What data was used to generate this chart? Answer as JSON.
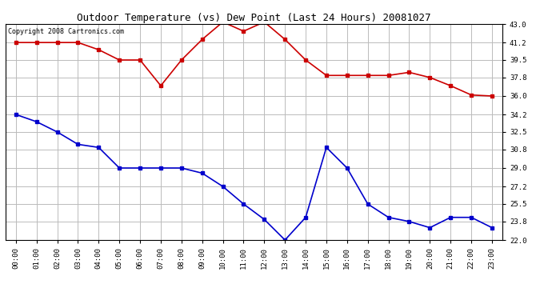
{
  "title": "Outdoor Temperature (vs) Dew Point (Last 24 Hours) 20081027",
  "copyright_text": "Copyright 2008 Cartronics.com",
  "x_labels": [
    "00:00",
    "01:00",
    "02:00",
    "03:00",
    "04:00",
    "05:00",
    "06:00",
    "07:00",
    "08:00",
    "09:00",
    "10:00",
    "11:00",
    "12:00",
    "13:00",
    "14:00",
    "15:00",
    "16:00",
    "17:00",
    "18:00",
    "19:00",
    "20:00",
    "21:00",
    "22:00",
    "23:00"
  ],
  "temp_data": [
    41.2,
    41.2,
    41.2,
    41.2,
    40.5,
    39.5,
    39.5,
    37.0,
    39.5,
    41.5,
    43.2,
    42.3,
    43.2,
    41.5,
    39.5,
    38.0,
    38.0,
    38.0,
    38.0,
    38.3,
    37.8,
    37.0,
    36.1,
    36.0
  ],
  "dew_data": [
    34.2,
    33.5,
    32.5,
    31.3,
    31.0,
    29.0,
    29.0,
    29.0,
    29.0,
    28.5,
    27.2,
    25.5,
    24.0,
    22.0,
    24.2,
    31.0,
    29.0,
    25.5,
    24.2,
    23.8,
    23.2,
    24.2,
    24.2,
    23.2
  ],
  "temp_color": "#cc0000",
  "dew_color": "#0000cc",
  "bg_color": "#ffffff",
  "plot_bg_color": "#ffffff",
  "grid_color": "#bbbbbb",
  "ylim_min": 22.0,
  "ylim_max": 43.0,
  "yticks": [
    22.0,
    23.8,
    25.5,
    27.2,
    29.0,
    30.8,
    32.5,
    34.2,
    36.0,
    37.8,
    39.5,
    41.2,
    43.0
  ],
  "title_fontsize": 9,
  "copyright_fontsize": 6,
  "tick_fontsize": 6.5,
  "line_width": 1.2,
  "marker_size": 2.5,
  "marker_style": "s"
}
